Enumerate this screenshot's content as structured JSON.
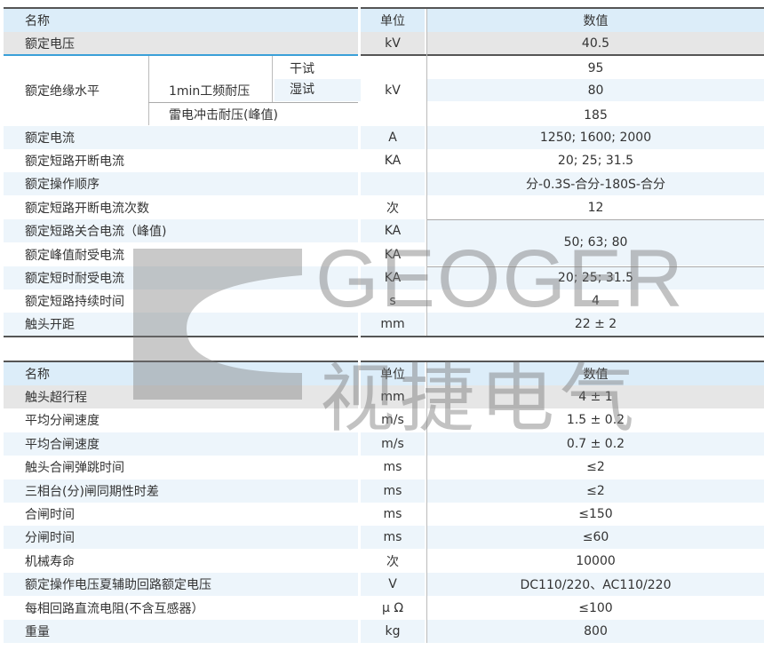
{
  "watermark": {
    "logo_en": "GEOGER",
    "logo_cn": "视捷电气"
  },
  "table1": {
    "header": {
      "name": "名称",
      "unit": "单位",
      "value": "数值"
    },
    "rated_voltage": {
      "name": "额定电压",
      "unit": "kV",
      "value": "40.5"
    },
    "insulation": {
      "name": "额定绝缘水平",
      "sub1": "1min工频耐压",
      "dry": "干试",
      "wet": "湿试",
      "sub2": "雷电冲击耐压(峰值)",
      "unit": "kV",
      "dry_value": "95",
      "wet_value": "80",
      "lightning_value": "185"
    },
    "rows": [
      {
        "name": "额定电流",
        "unit": "A",
        "value": "1250; 1600; 2000"
      },
      {
        "name": "额定短路开断电流",
        "unit": "KA",
        "value": "20; 25; 31.5"
      },
      {
        "name": "额定操作顺序",
        "unit": "",
        "value": "分-0.3S-合分-180S-合分"
      },
      {
        "name": "额定短路开断电流次数",
        "unit": "次",
        "value": "12"
      },
      {
        "name": "额定短路关合电流（峰值)",
        "unit": "KA",
        "value": "50; 63; 80"
      },
      {
        "name": "额定峰值耐受电流",
        "unit": "KA",
        "value": ""
      },
      {
        "name": "额定短时耐受电流",
        "unit": "KA",
        "value": "20; 25; 31.5"
      },
      {
        "name": "额定短路持续时间",
        "unit": "s",
        "value": "4"
      },
      {
        "name": "触头开距",
        "unit": "mm",
        "value": "22 ± 2"
      }
    ]
  },
  "table2": {
    "header": {
      "name": "名称",
      "unit": "单位",
      "value": "数值"
    },
    "rows": [
      {
        "name": "触头超行程",
        "unit": "mm",
        "value": "4 ± 1"
      },
      {
        "name": "平均分闸速度",
        "unit": "m/s",
        "value": "1.5 ± 0.2"
      },
      {
        "name": "平均合闸速度",
        "unit": "m/s",
        "value": "0.7 ± 0.2"
      },
      {
        "name": "触头合闸弹跳时间",
        "unit": "ms",
        "value": "≤2"
      },
      {
        "name": "三相台(分)闸同期性时差",
        "unit": "ms",
        "value": "≤2"
      },
      {
        "name": "合闸时间",
        "unit": "ms",
        "value": "≤150"
      },
      {
        "name": "分闸时间",
        "unit": "ms",
        "value": "≤60"
      },
      {
        "name": "机械寿命",
        "unit": "次",
        "value": "10000"
      },
      {
        "name": "额定操作电压夏辅助回路额定电压",
        "unit": "V",
        "value": "DC110/220、AC110/220"
      },
      {
        "name": "每相回路直流电阻(不含互感器）",
        "unit": "μ Ω",
        "value": "≤100"
      },
      {
        "name": "重量",
        "unit": "kg",
        "value": "800"
      }
    ]
  },
  "colors": {
    "header": "#dcedf9",
    "gray_row": "#e6e6e6",
    "alt_row": "#edf5fb",
    "accent_line": "#3aa0d8"
  }
}
